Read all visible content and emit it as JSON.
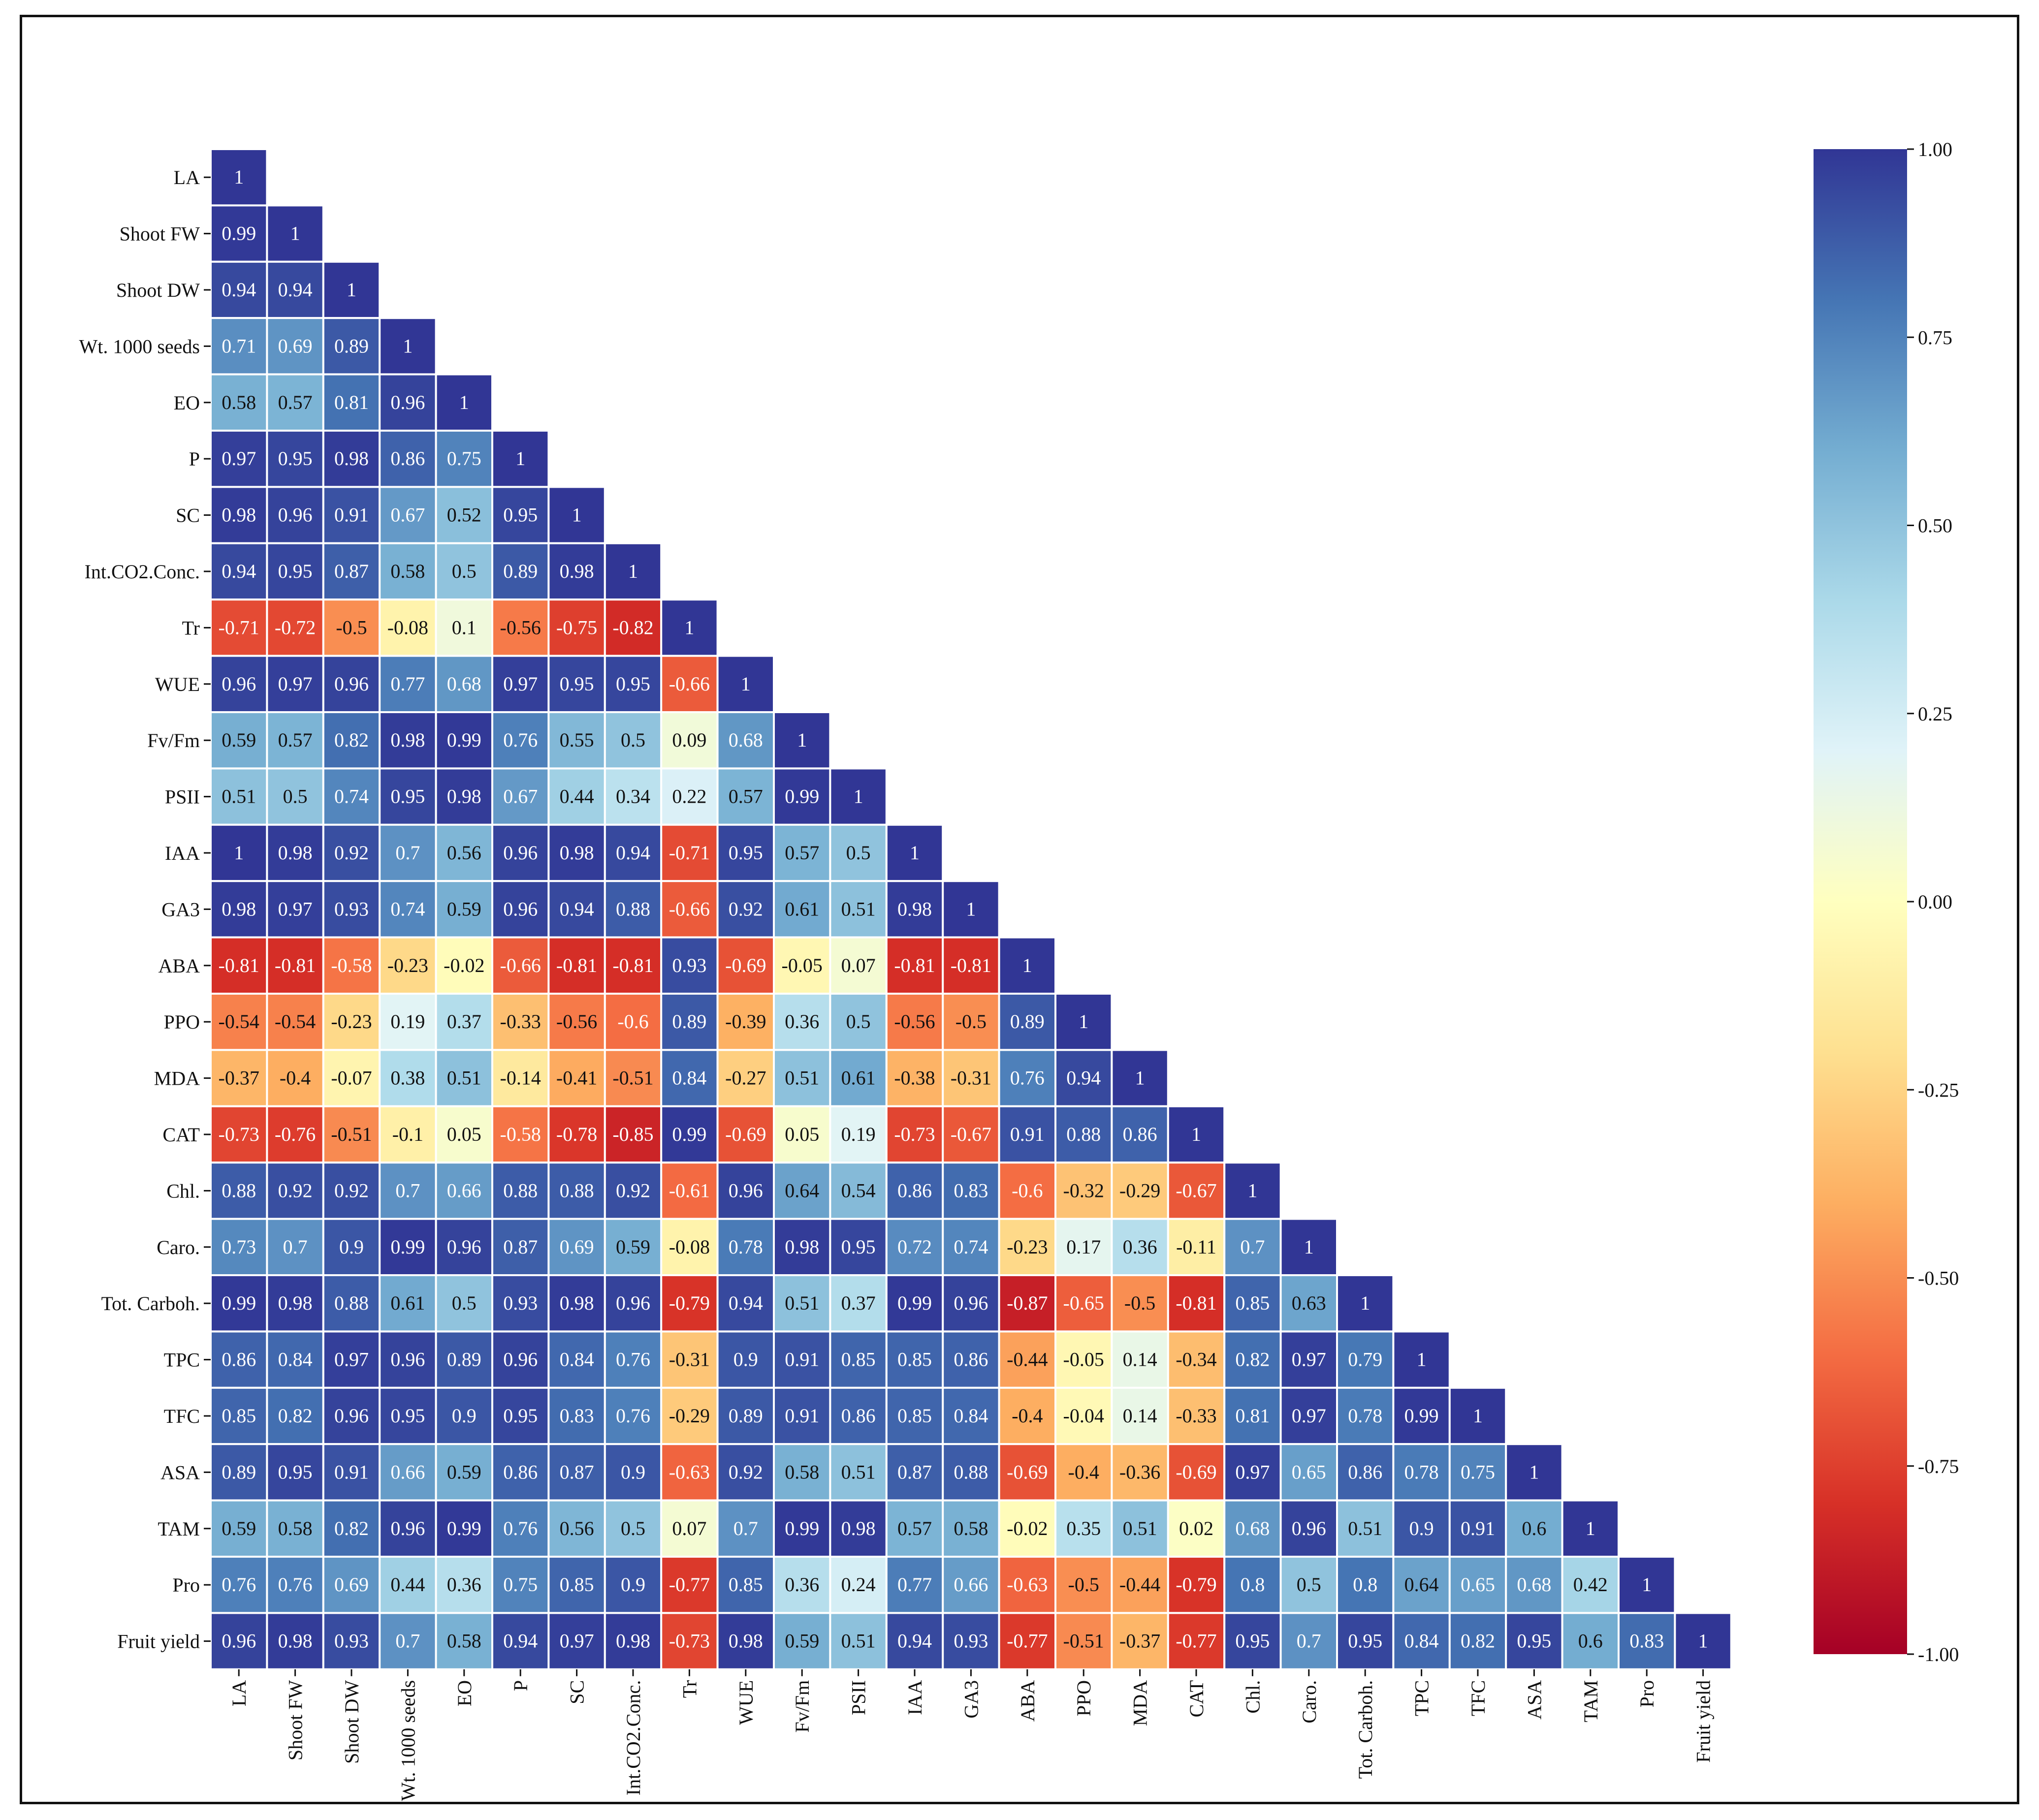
{
  "chart_data": {
    "type": "heatmap",
    "title": "",
    "variables": [
      "LA",
      "Shoot FW",
      "Shoot DW",
      "Wt. 1000 seeds",
      "EO",
      "P",
      "SC",
      "Int.CO2.Conc.",
      "Tr",
      "WUE",
      "Fv/Fm",
      "PSII",
      "IAA",
      "GA3",
      "ABA",
      "PPO",
      "MDA",
      "CAT",
      "Chl.",
      "Caro.",
      "Tot. Carboh.",
      "TPC",
      "TFC",
      "ASA",
      "TAM",
      "Pro",
      "Fruit yield"
    ],
    "values": [
      [
        1
      ],
      [
        0.99,
        1
      ],
      [
        0.94,
        0.94,
        1
      ],
      [
        0.71,
        0.69,
        0.89,
        1
      ],
      [
        0.58,
        0.57,
        0.81,
        0.96,
        1
      ],
      [
        0.97,
        0.95,
        0.98,
        0.86,
        0.75,
        1
      ],
      [
        0.98,
        0.96,
        0.91,
        0.67,
        0.52,
        0.95,
        1
      ],
      [
        0.94,
        0.95,
        0.87,
        0.58,
        0.5,
        0.89,
        0.98,
        1
      ],
      [
        -0.71,
        -0.72,
        -0.5,
        -0.08,
        0.1,
        -0.56,
        -0.75,
        -0.82,
        1
      ],
      [
        0.96,
        0.97,
        0.96,
        0.77,
        0.68,
        0.97,
        0.95,
        0.95,
        -0.66,
        1
      ],
      [
        0.59,
        0.57,
        0.82,
        0.98,
        0.99,
        0.76,
        0.55,
        0.5,
        0.09,
        0.68,
        1
      ],
      [
        0.51,
        0.5,
        0.74,
        0.95,
        0.98,
        0.67,
        0.44,
        0.34,
        0.22,
        0.57,
        0.99,
        1
      ],
      [
        1,
        0.98,
        0.92,
        0.7,
        0.56,
        0.96,
        0.98,
        0.94,
        -0.71,
        0.95,
        0.57,
        0.5,
        1
      ],
      [
        0.98,
        0.97,
        0.93,
        0.74,
        0.59,
        0.96,
        0.94,
        0.88,
        -0.66,
        0.92,
        0.61,
        0.51,
        0.98,
        1
      ],
      [
        -0.81,
        -0.81,
        -0.58,
        -0.23,
        -0.02,
        -0.66,
        -0.81,
        -0.81,
        0.93,
        -0.69,
        -0.05,
        0.07,
        -0.81,
        -0.81,
        1
      ],
      [
        -0.54,
        -0.54,
        -0.23,
        0.19,
        0.37,
        -0.33,
        -0.56,
        -0.6,
        0.89,
        -0.39,
        0.36,
        0.5,
        -0.56,
        -0.5,
        0.89,
        1
      ],
      [
        -0.37,
        -0.4,
        -0.07,
        0.38,
        0.51,
        -0.14,
        -0.41,
        -0.51,
        0.84,
        -0.27,
        0.51,
        0.61,
        -0.38,
        -0.31,
        0.76,
        0.94,
        1
      ],
      [
        -0.73,
        -0.76,
        -0.51,
        -0.1,
        0.05,
        -0.58,
        -0.78,
        -0.85,
        0.99,
        -0.69,
        0.05,
        0.19,
        -0.73,
        -0.67,
        0.91,
        0.88,
        0.86,
        1
      ],
      [
        0.88,
        0.92,
        0.92,
        0.7,
        0.66,
        0.88,
        0.88,
        0.92,
        -0.61,
        0.96,
        0.64,
        0.54,
        0.86,
        0.83,
        -0.6,
        -0.32,
        -0.29,
        -0.67,
        1
      ],
      [
        0.73,
        0.7,
        0.9,
        0.99,
        0.96,
        0.87,
        0.69,
        0.59,
        -0.08,
        0.78,
        0.98,
        0.95,
        0.72,
        0.74,
        -0.23,
        0.17,
        0.36,
        -0.11,
        0.7,
        1
      ],
      [
        0.99,
        0.98,
        0.88,
        0.61,
        0.5,
        0.93,
        0.98,
        0.96,
        -0.79,
        0.94,
        0.51,
        0.37,
        0.99,
        0.96,
        -0.87,
        -0.65,
        -0.5,
        -0.81,
        0.85,
        0.63,
        1
      ],
      [
        0.86,
        0.84,
        0.97,
        0.96,
        0.89,
        0.96,
        0.84,
        0.76,
        -0.31,
        0.9,
        0.91,
        0.85,
        0.85,
        0.86,
        -0.44,
        -0.05,
        0.14,
        -0.34,
        0.82,
        0.97,
        0.79,
        1
      ],
      [
        0.85,
        0.82,
        0.96,
        0.95,
        0.9,
        0.95,
        0.83,
        0.76,
        -0.29,
        0.89,
        0.91,
        0.86,
        0.85,
        0.84,
        -0.4,
        -0.04,
        0.14,
        -0.33,
        0.81,
        0.97,
        0.78,
        0.99,
        1
      ],
      [
        0.89,
        0.95,
        0.91,
        0.66,
        0.59,
        0.86,
        0.87,
        0.9,
        -0.63,
        0.92,
        0.58,
        0.51,
        0.87,
        0.88,
        -0.69,
        -0.4,
        -0.36,
        -0.69,
        0.97,
        0.65,
        0.86,
        0.78,
        0.75,
        1
      ],
      [
        0.59,
        0.58,
        0.82,
        0.96,
        0.99,
        0.76,
        0.56,
        0.5,
        0.07,
        0.7,
        0.99,
        0.98,
        0.57,
        0.58,
        -0.02,
        0.35,
        0.51,
        0.02,
        0.68,
        0.96,
        0.51,
        0.9,
        0.91,
        0.6,
        1
      ],
      [
        0.76,
        0.76,
        0.69,
        0.44,
        0.36,
        0.75,
        0.85,
        0.9,
        -0.77,
        0.85,
        0.36,
        0.24,
        0.77,
        0.66,
        -0.63,
        -0.5,
        -0.44,
        -0.79,
        0.8,
        0.5,
        0.8,
        0.64,
        0.65,
        0.68,
        0.42,
        1
      ],
      [
        0.96,
        0.98,
        0.93,
        0.7,
        0.58,
        0.94,
        0.97,
        0.98,
        -0.73,
        0.98,
        0.59,
        0.51,
        0.94,
        0.93,
        -0.77,
        -0.51,
        -0.37,
        -0.77,
        0.95,
        0.7,
        0.95,
        0.84,
        0.82,
        0.95,
        0.6,
        0.83,
        1
      ]
    ],
    "colorbar": {
      "ticks": [
        1.0,
        0.75,
        0.5,
        0.25,
        0.0,
        -0.25,
        -0.5,
        -0.75,
        -1.0
      ],
      "tick_labels": [
        "1.00",
        "0.75",
        "0.50",
        "0.25",
        "0.00",
        "-0.25",
        "-0.50",
        "-0.75",
        "-1.00"
      ],
      "range": [
        -1,
        1
      ],
      "colormap": "RdYlBu",
      "stops": [
        "#a50026",
        "#d73027",
        "#f46d43",
        "#fdae61",
        "#fee090",
        "#ffffbf",
        "#e0f3f8",
        "#abd9e9",
        "#74add1",
        "#4575b4",
        "#313695"
      ]
    }
  }
}
